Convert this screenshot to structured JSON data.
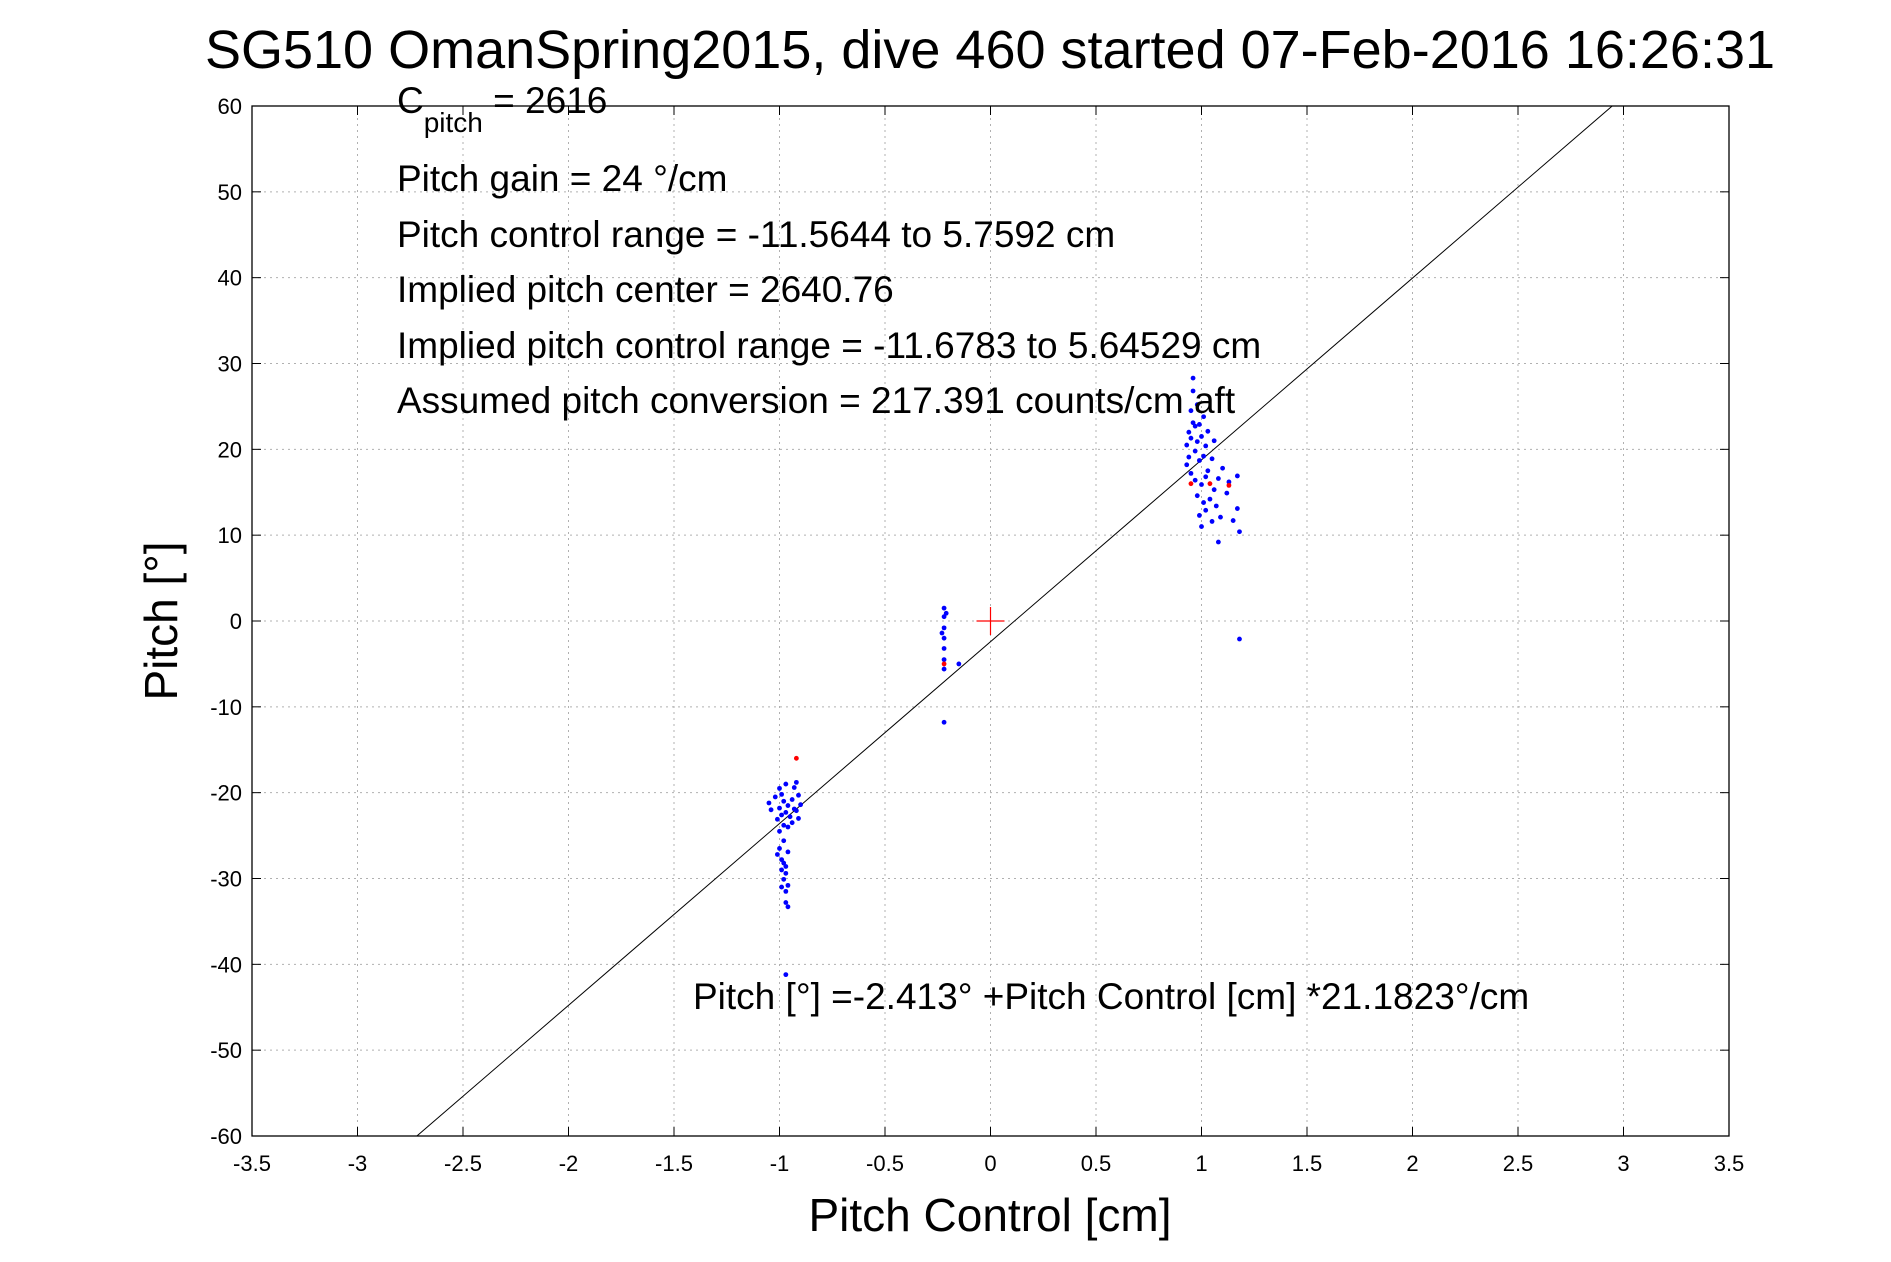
{
  "chart_data": {
    "type": "scatter",
    "title": "SG510 OmanSpring2015, dive 460 started 07-Feb-2016 16:26:31",
    "xlabel": "Pitch Control [cm]",
    "ylabel": "Pitch [°]",
    "xlim": [
      -3.5,
      3.5
    ],
    "ylim": [
      -60,
      60
    ],
    "xticks": [
      -3.5,
      -3,
      -2.5,
      -2,
      -1.5,
      -1,
      -0.5,
      0,
      0.5,
      1,
      1.5,
      2,
      2.5,
      3,
      3.5
    ],
    "xtick_labels": [
      "-3.5",
      "-3",
      "-2.5",
      "-2",
      "-1.5",
      "-1",
      "-0.5",
      "0",
      "0.5",
      "1",
      "1.5",
      "2",
      "2.5",
      "3",
      "3.5"
    ],
    "yticks": [
      -60,
      -50,
      -40,
      -30,
      -20,
      -10,
      0,
      10,
      20,
      30,
      40,
      50,
      60
    ],
    "ytick_labels": [
      "-60",
      "-50",
      "-40",
      "-30",
      "-20",
      "-10",
      "0",
      "10",
      "20",
      "30",
      "40",
      "50",
      "60"
    ],
    "grid": true,
    "annotations": {
      "cpitch_main": "C",
      "cpitch_sub": "pitch",
      "cpitch_value": " = 2616",
      "pitch_gain": "Pitch gain = 24 °/cm",
      "control_range": "Pitch control range = -11.5644 to 5.7592 cm",
      "implied_center": "Implied pitch center = 2640.76",
      "implied_range": "Implied pitch control range = -11.6783 to 5.64529 cm",
      "assumed_conversion": "Assumed pitch conversion = 217.391 counts/cm aft",
      "fit_equation": "Pitch [°] =-2.413° +Pitch Control [cm] *21.1823°/cm"
    },
    "fit_line": {
      "intercept": -2.413,
      "slope": 21.1823
    },
    "center_marker": {
      "x": 0,
      "y": 0
    },
    "colors": {
      "points": "#0000ff",
      "highlight": "#ff0000",
      "line": "#000000",
      "grid": "#b0b0b0"
    },
    "series": [
      {
        "name": "observations",
        "points": [
          [
            -1.05,
            -21.2
          ],
          [
            -1.04,
            -22.0
          ],
          [
            -1.02,
            -20.5
          ],
          [
            -1.01,
            -23.1
          ],
          [
            -1.0,
            -19.5
          ],
          [
            -1.0,
            -21.8
          ],
          [
            -1.0,
            -24.5
          ],
          [
            -0.99,
            -22.6
          ],
          [
            -0.99,
            -20.2
          ],
          [
            -0.98,
            -23.8
          ],
          [
            -0.98,
            -21.0
          ],
          [
            -0.97,
            -22.3
          ],
          [
            -0.97,
            -19.0
          ],
          [
            -0.96,
            -24.0
          ],
          [
            -0.96,
            -21.5
          ],
          [
            -0.95,
            -22.8
          ],
          [
            -0.94,
            -20.8
          ],
          [
            -0.94,
            -23.5
          ],
          [
            -0.93,
            -21.9
          ],
          [
            -0.93,
            -19.4
          ],
          [
            -0.92,
            -22.1
          ],
          [
            -0.91,
            -20.3
          ],
          [
            -0.91,
            -23.0
          ],
          [
            -0.9,
            -21.4
          ],
          [
            -0.92,
            -18.8
          ],
          [
            -1.0,
            -26.5
          ],
          [
            -0.99,
            -27.8
          ],
          [
            -0.99,
            -29.0
          ],
          [
            -0.98,
            -28.2
          ],
          [
            -0.98,
            -30.1
          ],
          [
            -0.97,
            -31.5
          ],
          [
            -0.97,
            -29.4
          ],
          [
            -0.97,
            -32.8
          ],
          [
            -0.96,
            -33.3
          ],
          [
            -0.96,
            -30.8
          ],
          [
            -0.98,
            -25.6
          ],
          [
            -1.01,
            -27.2
          ],
          [
            -0.99,
            -31.0
          ],
          [
            -0.97,
            -28.6
          ],
          [
            -0.96,
            -26.9
          ],
          [
            -0.97,
            -41.2
          ],
          [
            -0.22,
            1.5
          ],
          [
            -0.22,
            0.5
          ],
          [
            -0.22,
            -0.8
          ],
          [
            -0.22,
            -2.0
          ],
          [
            -0.22,
            -3.2
          ],
          [
            -0.22,
            -4.5
          ],
          [
            -0.22,
            -5.6
          ],
          [
            -0.23,
            -1.4
          ],
          [
            -0.21,
            0.9
          ],
          [
            -0.15,
            -5.0
          ],
          [
            -0.22,
            -11.8
          ],
          [
            0.93,
            18.2
          ],
          [
            0.93,
            20.5
          ],
          [
            0.94,
            22.0
          ],
          [
            0.94,
            19.1
          ],
          [
            0.95,
            24.5
          ],
          [
            0.95,
            17.2
          ],
          [
            0.95,
            21.3
          ],
          [
            0.96,
            26.8
          ],
          [
            0.96,
            23.1
          ],
          [
            0.96,
            28.3
          ],
          [
            0.97,
            19.8
          ],
          [
            0.97,
            22.7
          ],
          [
            0.97,
            16.4
          ],
          [
            0.98,
            25.2
          ],
          [
            0.98,
            20.9
          ],
          [
            0.98,
            14.6
          ],
          [
            0.99,
            22.9
          ],
          [
            0.99,
            18.7
          ],
          [
            0.99,
            12.3
          ],
          [
            1.0,
            21.5
          ],
          [
            1.0,
            15.9
          ],
          [
            1.0,
            11.0
          ],
          [
            1.01,
            23.8
          ],
          [
            1.01,
            19.2
          ],
          [
            1.01,
            13.8
          ],
          [
            1.02,
            20.4
          ],
          [
            1.02,
            16.8
          ],
          [
            1.02,
            12.9
          ],
          [
            1.03,
            22.1
          ],
          [
            1.03,
            17.5
          ],
          [
            1.04,
            14.2
          ],
          [
            1.05,
            18.9
          ],
          [
            1.05,
            11.6
          ],
          [
            1.06,
            15.3
          ],
          [
            1.06,
            21.0
          ],
          [
            1.07,
            13.4
          ],
          [
            1.08,
            9.2
          ],
          [
            1.08,
            16.6
          ],
          [
            1.09,
            12.1
          ],
          [
            1.1,
            17.8
          ],
          [
            1.12,
            14.9
          ],
          [
            1.13,
            16.2
          ],
          [
            1.15,
            11.7
          ],
          [
            1.17,
            16.9
          ],
          [
            1.17,
            13.1
          ],
          [
            1.18,
            10.4
          ],
          [
            1.18,
            -2.1
          ]
        ]
      },
      {
        "name": "highlighted",
        "points": [
          [
            -0.92,
            -16.0
          ],
          [
            -0.22,
            -5.0
          ],
          [
            0.95,
            16.0
          ],
          [
            1.04,
            16.0
          ],
          [
            1.13,
            15.8
          ]
        ]
      }
    ]
  }
}
